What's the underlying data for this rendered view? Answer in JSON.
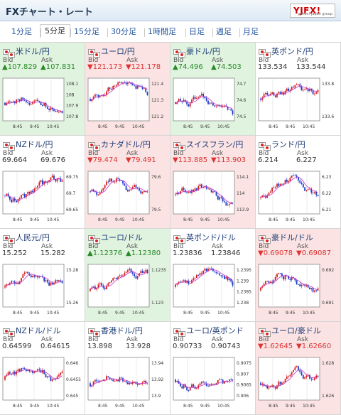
{
  "app_title": "FXチャート・レート",
  "logo_text": "YJFX!",
  "logo_sub": "yahoo! japan group",
  "tabs": [
    "1分足",
    "5分足",
    "15分足",
    "30分足",
    "1時間足",
    "日足",
    "週足",
    "月足"
  ],
  "active_tab": "5分足",
  "bid_label": "Bid",
  "ask_label": "Ask",
  "colors": {
    "up_bg": "#e0f3df",
    "down_bg": "#fbe3e3",
    "up_text": "#2a8a2a",
    "down_text": "#d33",
    "candle_up": "#d42020",
    "candle_down": "#1b3cc8",
    "ma_line": "#cc33cc"
  },
  "cards": [
    {
      "name": "米ドル/円",
      "flags": 2,
      "trend": "up",
      "bid": "107.829",
      "ask": "107.831",
      "times": [
        "8:45",
        "9:45",
        "10:45"
      ],
      "ticks": [
        "108.1",
        "108",
        "107.9",
        "107.8"
      ]
    },
    {
      "name": "ユーロ/円",
      "flags": 2,
      "trend": "down",
      "bid": "121.173",
      "ask": "121.178",
      "times": [
        "8:45",
        "9:45",
        "10:45"
      ],
      "ticks": [
        "121.4",
        "121.3",
        "121.2"
      ]
    },
    {
      "name": "豪ドル/円",
      "flags": 2,
      "trend": "up",
      "bid": "74.496",
      "ask": "74.503",
      "times": [
        "8:45",
        "9:45",
        "10:45"
      ],
      "ticks": [
        "74.7",
        "74.6",
        "74.5"
      ]
    },
    {
      "name": "英ポンド/円",
      "flags": 2,
      "trend": "flat",
      "bid": "133.534",
      "ask": "133.544",
      "times": [
        "8:45",
        "9:45",
        "10:45"
      ],
      "ticks": [
        "133.8",
        "133.6"
      ]
    },
    {
      "name": "NZドル/円",
      "flags": 2,
      "trend": "flat",
      "bid": "69.664",
      "ask": "69.676",
      "times": [
        "8:45",
        "9:45",
        "10:45"
      ],
      "ticks": [
        "69.75",
        "69.7",
        "69.65"
      ]
    },
    {
      "name": "カナダドル/円",
      "flags": 2,
      "trend": "down",
      "bid": "79.474",
      "ask": "79.491",
      "times": [
        "8:45",
        "9:45",
        "10:45"
      ],
      "ticks": [
        "79.6",
        "79.5"
      ]
    },
    {
      "name": "スイスフラン/円",
      "flags": 2,
      "trend": "down",
      "bid": "113.885",
      "ask": "113.903",
      "times": [
        "8:45",
        "9:45",
        "10:45"
      ],
      "ticks": [
        "114.1",
        "114",
        "113.9"
      ]
    },
    {
      "name": "ランド/円",
      "flags": 2,
      "trend": "flat",
      "bid": "6.214",
      "ask": "6.227",
      "times": [
        "8:45",
        "9:45",
        "10:45"
      ],
      "ticks": [
        "6.23",
        "6.22",
        "6.21"
      ]
    },
    {
      "name": "人民元/円",
      "flags": 2,
      "trend": "flat",
      "bid": "15.252",
      "ask": "15.282",
      "times": [
        "8:45",
        "9:45",
        "10:45"
      ],
      "ticks": [
        "15.28",
        "15.26"
      ]
    },
    {
      "name": "ユーロ/ドル",
      "flags": 2,
      "trend": "up",
      "bid": "1.12376",
      "ask": "1.12380",
      "times": [
        "8:45",
        "9:45",
        "10:45"
      ],
      "ticks": [
        "1.1235",
        "1.123"
      ]
    },
    {
      "name": "英ポンド/ドル",
      "flags": 2,
      "trend": "flat",
      "bid": "1.23836",
      "ask": "1.23846",
      "times": [
        "8:45",
        "9:45",
        "10:45"
      ],
      "ticks": [
        "1.2395",
        "1.239",
        "1.2385",
        "1.238"
      ]
    },
    {
      "name": "豪ドル/ドル",
      "flags": 2,
      "trend": "down",
      "bid": "0.69078",
      "ask": "0.69087",
      "times": [
        "8:45",
        "9:45",
        "10:45"
      ],
      "ticks": [
        "0.692",
        "0.691"
      ]
    },
    {
      "name": "NZドル/ドル",
      "flags": 2,
      "trend": "flat",
      "bid": "0.64599",
      "ask": "0.64615",
      "times": [
        "8:45",
        "9:45",
        "10:45"
      ],
      "ticks": [
        "0.646",
        "0.6455",
        "0.645"
      ]
    },
    {
      "name": "香港ドル/円",
      "flags": 2,
      "trend": "flat",
      "bid": "13.898",
      "ask": "13.928",
      "times": [
        "8:45",
        "9:45",
        "10:45"
      ],
      "ticks": [
        "13.94",
        "13.92",
        "13.9"
      ]
    },
    {
      "name": "ユーロ/英ポンド",
      "flags": 2,
      "trend": "flat",
      "bid": "0.90733",
      "ask": "0.90743",
      "times": [
        "8:45",
        "9:45",
        "10:45"
      ],
      "ticks": [
        "0.9075",
        "0.907",
        "0.9065",
        "0.906"
      ]
    },
    {
      "name": "ユーロ/豪ドル",
      "flags": 2,
      "trend": "down",
      "bid": "1.62645",
      "ask": "1.62660",
      "times": [
        "8:45",
        "9:45",
        "10:45"
      ],
      "ticks": [
        "1.628",
        "1.626"
      ]
    }
  ]
}
